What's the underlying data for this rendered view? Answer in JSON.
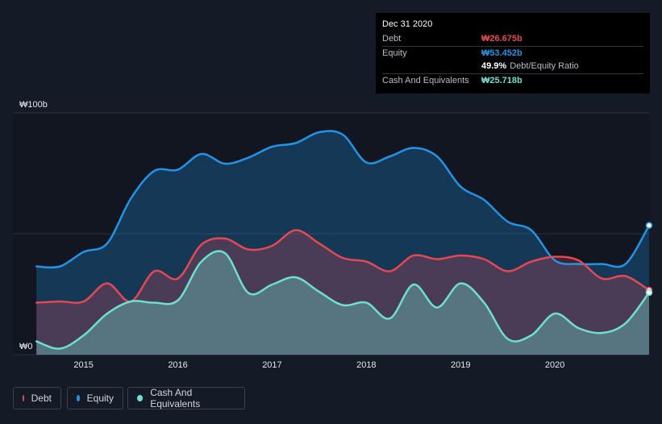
{
  "tooltip": {
    "date": "Dec 31 2020",
    "debt_label": "Debt",
    "debt_value": "₩26.675b",
    "equity_label": "Equity",
    "equity_value": "₩53.452b",
    "ratio_value": "49.9%",
    "ratio_label": "Debt/Equity Ratio",
    "cash_label": "Cash And Equivalents",
    "cash_value": "₩25.718b"
  },
  "legend": {
    "debt": "Debt",
    "equity": "Equity",
    "cash": "Cash And Equivalents"
  },
  "colors": {
    "debt": "#e64853",
    "equity": "#2394e5",
    "cash": "#6ee0cf",
    "background": "#151b26",
    "plot_background": "#111621"
  },
  "chart_data": {
    "type": "area",
    "title": "",
    "xlabel": "",
    "ylabel": "",
    "ylim": [
      0,
      100
    ],
    "y_tick_labels": [
      {
        "value": 0,
        "label": "₩0"
      },
      {
        "value": 100,
        "label": "₩100b"
      }
    ],
    "x_ticks": [
      {
        "value": 2015,
        "label": "2015"
      },
      {
        "value": 2016,
        "label": "2016"
      },
      {
        "value": 2017,
        "label": "2017"
      },
      {
        "value": 2018,
        "label": "2018"
      },
      {
        "value": 2019,
        "label": "2019"
      },
      {
        "value": 2020,
        "label": "2020"
      }
    ],
    "xlim": [
      2014.25,
      2021.0
    ],
    "x": [
      2014.5,
      2014.75,
      2015.0,
      2015.25,
      2015.5,
      2015.75,
      2016.0,
      2016.25,
      2016.5,
      2016.75,
      2017.0,
      2017.25,
      2017.5,
      2017.75,
      2018.0,
      2018.25,
      2018.5,
      2018.75,
      2019.0,
      2019.25,
      2019.5,
      2019.75,
      2020.0,
      2020.25,
      2020.5,
      2020.75,
      2021.0
    ],
    "series": [
      {
        "name": "Equity",
        "values": [
          36.5,
          36.5,
          42.5,
          46,
          64.5,
          76,
          76.5,
          83,
          79,
          81.5,
          86,
          87.5,
          92,
          91,
          79.5,
          82,
          85.5,
          82,
          69.5,
          64,
          55,
          51.5,
          39,
          37.5,
          37.5,
          37.5,
          53.452
        ]
      },
      {
        "name": "Debt",
        "values": [
          21.5,
          22,
          22,
          29.5,
          22,
          34.5,
          31.5,
          45.5,
          48,
          43.5,
          45,
          51.5,
          46,
          40,
          38.5,
          34.5,
          41,
          39.5,
          41,
          39.5,
          34.5,
          38.5,
          40.5,
          39,
          31.5,
          32.5,
          26.675
        ]
      },
      {
        "name": "Cash And Equivalents",
        "values": [
          5.5,
          2.5,
          8,
          17,
          22,
          21.5,
          22.5,
          38.5,
          42,
          25.5,
          29,
          32,
          26,
          20.5,
          21.5,
          15,
          29,
          19.5,
          29.5,
          21.5,
          6.5,
          8,
          17,
          11,
          9,
          13,
          25.718
        ]
      }
    ]
  }
}
